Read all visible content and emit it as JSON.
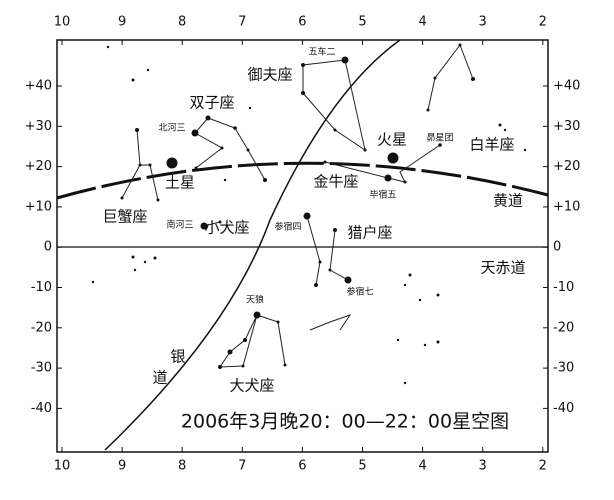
{
  "title": "2006年3月晚20：00—22：00星空图",
  "ra_ticks": [
    "10",
    "9",
    "8",
    "7",
    "6",
    "5",
    "4",
    "3",
    "2"
  ],
  "dec_ticks": [
    "+40",
    "+30",
    "+20",
    "+10",
    "0",
    "-10",
    "-20",
    "-30",
    "-40"
  ],
  "labels": {
    "capella": "五车二",
    "auriga": "御夫座",
    "gemini": "双子座",
    "pollux": "北河三",
    "mars": "火星",
    "pleiades": "昴星团",
    "aries": "白羊座",
    "saturn": "土星",
    "taurus": "金牛座",
    "aldebaran": "毕宿五",
    "ecliptic": "黄道",
    "cancer": "巨蟹座",
    "procyon": "南河三",
    "canis_minor": "小犬座",
    "betelgeuse": "参宿四",
    "orion": "猎户座",
    "equator": "天赤道",
    "rigel": "参宿七",
    "sirius": "天狼",
    "milky1": "银",
    "milky2": "道",
    "canis_major": "大犬座"
  }
}
